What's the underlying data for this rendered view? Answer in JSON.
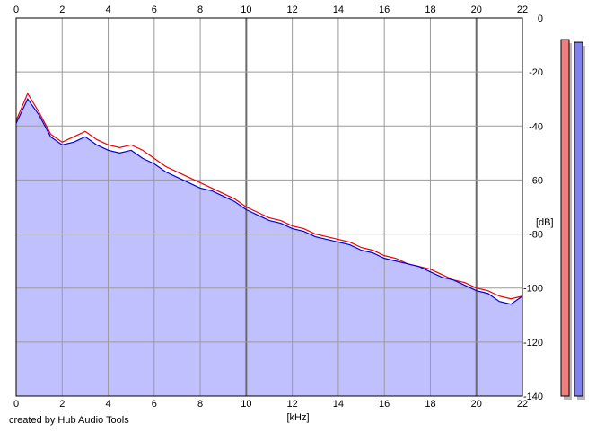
{
  "credit": "created by Hub Audio Tools",
  "colors": {
    "background": "#ffffff",
    "grid": "#9a9a9a",
    "grid_major": "#6a6a6a",
    "fill": "#c0c0ff",
    "left_channel": "#ee0000",
    "right_channel": "#0000dd",
    "meter_left": "#f07f7f",
    "meter_right": "#8080f0",
    "meter_shadow": "#b8b8b8"
  },
  "chart_data": {
    "type": "line",
    "title": "",
    "xlabel": "[kHz]",
    "ylabel": "[dB]",
    "xlim": [
      0,
      22
    ],
    "ylim": [
      -140,
      0
    ],
    "x_ticks": [
      "0",
      "2",
      "4",
      "6",
      "8",
      "10",
      "12",
      "14",
      "16",
      "18",
      "20",
      "22"
    ],
    "y_ticks": [
      "0",
      "-20",
      "-40",
      "-60",
      "-80",
      "-100",
      "-120",
      "-140"
    ],
    "grid": true,
    "major_grid_x": [
      10,
      20
    ],
    "x": [
      0,
      0.5,
      1,
      1.5,
      2,
      2.5,
      3,
      3.5,
      4,
      4.5,
      5,
      5.5,
      6,
      6.5,
      7,
      7.5,
      8,
      8.5,
      9,
      9.5,
      10,
      10.5,
      11,
      11.5,
      12,
      12.5,
      13,
      13.5,
      14,
      14.5,
      15,
      15.5,
      16,
      16.5,
      17,
      17.5,
      18,
      18.5,
      19,
      19.5,
      20,
      20.5,
      21,
      21.5,
      22
    ],
    "series": [
      {
        "values": [
          -38,
          -28,
          -35,
          -43,
          -46,
          -44,
          -42,
          -45,
          -47,
          -48,
          -47,
          -49,
          -52,
          -55,
          -57,
          -59,
          -61,
          -63,
          -65,
          -67,
          -70,
          -72,
          -74,
          -75,
          -77,
          -78,
          -80,
          -81,
          -82,
          -83,
          -85,
          -86,
          -88,
          -89,
          -91,
          -92,
          -93,
          -95,
          -97,
          -98,
          -100,
          -101,
          -103,
          -104,
          -103
        ]
      },
      {
        "values": [
          -39,
          -30,
          -36,
          -44,
          -47,
          -46,
          -44,
          -47,
          -49,
          -50,
          -49,
          -52,
          -54,
          -57,
          -59,
          -61,
          -63,
          -64,
          -66,
          -68,
          -71,
          -73,
          -75,
          -76,
          -78,
          -79,
          -81,
          -82,
          -83,
          -84,
          -86,
          -87,
          -89,
          -90,
          -91,
          -92,
          -94,
          -96,
          -97,
          -99,
          -101,
          -102,
          -105,
          -106,
          -103
        ]
      }
    ],
    "fill_under": true,
    "level_meters": [
      {
        "level_db": -8
      },
      {
        "level_db": -9
      }
    ]
  }
}
